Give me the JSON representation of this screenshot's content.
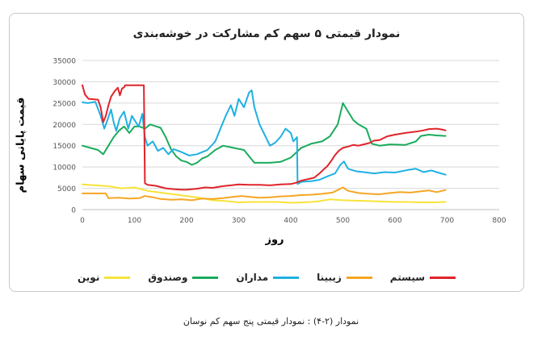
{
  "chart_data": {
    "type": "line",
    "title": "نمودار قیمتی ۵ سهم کم مشارکت در خوشه‌بندی",
    "xlabel": "روز",
    "ylabel": "قیمت پایانی سهام",
    "xlim": [
      0,
      800
    ],
    "ylim": [
      0,
      35000
    ],
    "xticks": [
      0,
      100,
      200,
      300,
      400,
      500,
      600,
      700,
      800
    ],
    "yticks": [
      0,
      5000,
      10000,
      15000,
      20000,
      25000,
      30000,
      35000
    ],
    "grid": "horizontal",
    "legend_position": "bottom",
    "series": [
      {
        "name": "سیستم",
        "color": "#e0242a",
        "points": [
          [
            0,
            29200
          ],
          [
            5,
            27000
          ],
          [
            12,
            26000
          ],
          [
            30,
            25800
          ],
          [
            35,
            24000
          ],
          [
            40,
            20500
          ],
          [
            45,
            22000
          ],
          [
            50,
            24500
          ],
          [
            55,
            26500
          ],
          [
            62,
            27800
          ],
          [
            68,
            28600
          ],
          [
            72,
            26800
          ],
          [
            76,
            28400
          ],
          [
            80,
            28700
          ],
          [
            82,
            29200
          ],
          [
            95,
            29200
          ],
          [
            105,
            29200
          ],
          [
            115,
            29200
          ],
          [
            118,
            29200
          ],
          [
            120,
            6200
          ],
          [
            125,
            5800
          ],
          [
            140,
            5600
          ],
          [
            150,
            5300
          ],
          [
            160,
            5000
          ],
          [
            175,
            4800
          ],
          [
            190,
            4700
          ],
          [
            200,
            4700
          ],
          [
            220,
            4900
          ],
          [
            235,
            5200
          ],
          [
            250,
            5100
          ],
          [
            270,
            5500
          ],
          [
            285,
            5700
          ],
          [
            300,
            5900
          ],
          [
            320,
            5800
          ],
          [
            340,
            5800
          ],
          [
            360,
            5700
          ],
          [
            380,
            5900
          ],
          [
            400,
            6000
          ],
          [
            410,
            6300
          ],
          [
            420,
            6800
          ],
          [
            435,
            7200
          ],
          [
            445,
            7500
          ],
          [
            455,
            8500
          ],
          [
            462,
            9300
          ],
          [
            470,
            10200
          ],
          [
            478,
            11500
          ],
          [
            485,
            12800
          ],
          [
            492,
            13800
          ],
          [
            500,
            14500
          ],
          [
            510,
            14800
          ],
          [
            520,
            15200
          ],
          [
            530,
            15000
          ],
          [
            540,
            15300
          ],
          [
            550,
            15600
          ],
          [
            560,
            16200
          ],
          [
            570,
            16300
          ],
          [
            585,
            17200
          ],
          [
            600,
            17600
          ],
          [
            620,
            18000
          ],
          [
            640,
            18300
          ],
          [
            655,
            18600
          ],
          [
            665,
            18900
          ],
          [
            680,
            19000
          ],
          [
            690,
            18800
          ],
          [
            697,
            18600
          ]
        ]
      },
      {
        "name": "زیبینا",
        "color": "#f5a623",
        "points": [
          [
            0,
            3800
          ],
          [
            20,
            3800
          ],
          [
            45,
            3800
          ],
          [
            50,
            2700
          ],
          [
            70,
            2800
          ],
          [
            90,
            2600
          ],
          [
            110,
            2700
          ],
          [
            120,
            3200
          ],
          [
            135,
            2900
          ],
          [
            150,
            2500
          ],
          [
            170,
            2300
          ],
          [
            190,
            2400
          ],
          [
            210,
            2200
          ],
          [
            230,
            2600
          ],
          [
            250,
            2500
          ],
          [
            270,
            2700
          ],
          [
            290,
            3000
          ],
          [
            305,
            3200
          ],
          [
            320,
            3000
          ],
          [
            340,
            2800
          ],
          [
            360,
            2900
          ],
          [
            380,
            3100
          ],
          [
            400,
            3200
          ],
          [
            420,
            3400
          ],
          [
            440,
            3500
          ],
          [
            460,
            3700
          ],
          [
            480,
            4000
          ],
          [
            490,
            4600
          ],
          [
            500,
            5200
          ],
          [
            510,
            4400
          ],
          [
            530,
            3900
          ],
          [
            550,
            3700
          ],
          [
            570,
            3600
          ],
          [
            590,
            3900
          ],
          [
            610,
            4100
          ],
          [
            630,
            4000
          ],
          [
            650,
            4300
          ],
          [
            665,
            4500
          ],
          [
            680,
            4100
          ],
          [
            697,
            4600
          ]
        ]
      },
      {
        "name": "مداران",
        "color": "#1eb1e3",
        "points": [
          [
            0,
            25200
          ],
          [
            10,
            25000
          ],
          [
            25,
            25300
          ],
          [
            35,
            22000
          ],
          [
            42,
            19000
          ],
          [
            48,
            21000
          ],
          [
            55,
            23500
          ],
          [
            60,
            20500
          ],
          [
            65,
            18500
          ],
          [
            72,
            21500
          ],
          [
            80,
            23000
          ],
          [
            88,
            19000
          ],
          [
            95,
            22000
          ],
          [
            100,
            21000
          ],
          [
            108,
            19500
          ],
          [
            115,
            22500
          ],
          [
            120,
            17000
          ],
          [
            125,
            15000
          ],
          [
            135,
            16000
          ],
          [
            145,
            13800
          ],
          [
            155,
            14500
          ],
          [
            165,
            13000
          ],
          [
            175,
            14200
          ],
          [
            190,
            13500
          ],
          [
            205,
            12700
          ],
          [
            220,
            13000
          ],
          [
            240,
            14000
          ],
          [
            255,
            16000
          ],
          [
            265,
            19000
          ],
          [
            275,
            22000
          ],
          [
            285,
            24500
          ],
          [
            292,
            22000
          ],
          [
            300,
            26000
          ],
          [
            310,
            24000
          ],
          [
            320,
            27500
          ],
          [
            325,
            28000
          ],
          [
            330,
            24000
          ],
          [
            340,
            20000
          ],
          [
            350,
            17500
          ],
          [
            360,
            15000
          ],
          [
            370,
            15700
          ],
          [
            380,
            17000
          ],
          [
            390,
            19000
          ],
          [
            400,
            18000
          ],
          [
            405,
            16000
          ],
          [
            412,
            17000
          ],
          [
            413,
            6000
          ],
          [
            420,
            6500
          ],
          [
            440,
            6700
          ],
          [
            455,
            7000
          ],
          [
            470,
            7800
          ],
          [
            485,
            8500
          ],
          [
            495,
            10500
          ],
          [
            502,
            11300
          ],
          [
            510,
            9600
          ],
          [
            525,
            9000
          ],
          [
            540,
            8800
          ],
          [
            560,
            8500
          ],
          [
            580,
            8800
          ],
          [
            600,
            8700
          ],
          [
            625,
            9300
          ],
          [
            640,
            9600
          ],
          [
            655,
            8800
          ],
          [
            670,
            9200
          ],
          [
            685,
            8600
          ],
          [
            697,
            8200
          ]
        ]
      },
      {
        "name": "وصندوق",
        "color": "#1aab5c",
        "points": [
          [
            0,
            15000
          ],
          [
            15,
            14500
          ],
          [
            30,
            14000
          ],
          [
            40,
            13000
          ],
          [
            50,
            15000
          ],
          [
            60,
            17000
          ],
          [
            70,
            18500
          ],
          [
            80,
            19500
          ],
          [
            90,
            18000
          ],
          [
            100,
            19500
          ],
          [
            110,
            19500
          ],
          [
            120,
            19000
          ],
          [
            130,
            20000
          ],
          [
            140,
            19600
          ],
          [
            150,
            19200
          ],
          [
            160,
            17000
          ],
          [
            170,
            14200
          ],
          [
            180,
            12500
          ],
          [
            190,
            11500
          ],
          [
            200,
            11200
          ],
          [
            210,
            10500
          ],
          [
            220,
            11000
          ],
          [
            230,
            12000
          ],
          [
            240,
            12500
          ],
          [
            255,
            14000
          ],
          [
            270,
            15000
          ],
          [
            290,
            14500
          ],
          [
            310,
            14000
          ],
          [
            330,
            11000
          ],
          [
            360,
            11000
          ],
          [
            380,
            11200
          ],
          [
            400,
            12200
          ],
          [
            420,
            14500
          ],
          [
            440,
            15500
          ],
          [
            460,
            16000
          ],
          [
            475,
            17200
          ],
          [
            490,
            20000
          ],
          [
            500,
            25000
          ],
          [
            510,
            23000
          ],
          [
            520,
            21000
          ],
          [
            530,
            20000
          ],
          [
            545,
            19000
          ],
          [
            555,
            15500
          ],
          [
            570,
            15000
          ],
          [
            590,
            15300
          ],
          [
            620,
            15200
          ],
          [
            640,
            16000
          ],
          [
            650,
            17300
          ],
          [
            665,
            17600
          ],
          [
            680,
            17400
          ],
          [
            697,
            17300
          ]
        ]
      },
      {
        "name": "نوین",
        "color": "#f7e33a",
        "points": [
          [
            0,
            5900
          ],
          [
            25,
            5700
          ],
          [
            50,
            5500
          ],
          [
            75,
            5000
          ],
          [
            100,
            5200
          ],
          [
            125,
            4400
          ],
          [
            150,
            4000
          ],
          [
            175,
            3600
          ],
          [
            200,
            3200
          ],
          [
            225,
            2800
          ],
          [
            250,
            2200
          ],
          [
            275,
            2000
          ],
          [
            300,
            1700
          ],
          [
            325,
            1800
          ],
          [
            350,
            1800
          ],
          [
            375,
            1800
          ],
          [
            400,
            1600
          ],
          [
            425,
            1700
          ],
          [
            450,
            1900
          ],
          [
            475,
            2400
          ],
          [
            500,
            2200
          ],
          [
            525,
            2100
          ],
          [
            550,
            2000
          ],
          [
            575,
            1900
          ],
          [
            600,
            1800
          ],
          [
            625,
            1800
          ],
          [
            650,
            1700
          ],
          [
            675,
            1700
          ],
          [
            697,
            1800
          ]
        ]
      }
    ]
  },
  "caption": "نمودار (۲-۴) : نمودار قیمتی پنج سهم کم نوسان"
}
